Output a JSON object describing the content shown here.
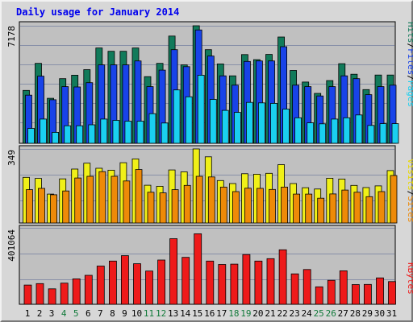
{
  "chart_data": {
    "type": "bar",
    "title": "Daily usage for January 2014",
    "days": [
      "1",
      "2",
      "3",
      "4",
      "5",
      "6",
      "7",
      "8",
      "9",
      "10",
      "11",
      "12",
      "13",
      "14",
      "15",
      "16",
      "17",
      "18",
      "19",
      "20",
      "21",
      "22",
      "23",
      "24",
      "25",
      "26",
      "27",
      "28",
      "29",
      "30",
      "31"
    ],
    "weekend_days": [
      "4",
      "5",
      "11",
      "12",
      "18",
      "19",
      "25",
      "26"
    ],
    "panels": [
      {
        "id": "top",
        "max_label": "7178",
        "ymax": 7178,
        "series": [
          {
            "name": "Hits",
            "color": "#117a5a",
            "values": [
              3230,
              4880,
              2750,
              3950,
              4160,
              4500,
              5820,
              5620,
              5620,
              5820,
              4070,
              4880,
              6550,
              4790,
              7178,
              5720,
              4850,
              4120,
              5420,
              5110,
              5430,
              6490,
              4450,
              3740,
              3050,
              3830,
              4860,
              4220,
              3280,
              4170,
              4170
            ]
          },
          {
            "name": "Files",
            "color": "#1843e8",
            "values": [
              2940,
              4100,
              2660,
              3460,
              3440,
              3700,
              4790,
              4790,
              4790,
              5030,
              3460,
              4470,
              5720,
              4680,
              6920,
              5330,
              4120,
              3550,
              5000,
              5030,
              5030,
              5900,
              3550,
              3460,
              2890,
              3460,
              4120,
              3950,
              2970,
              3460,
              3550
            ]
          },
          {
            "name": "Pages",
            "color": "#1ad0f0",
            "values": [
              910,
              1480,
              670,
              1070,
              1070,
              1130,
              1480,
              1400,
              1350,
              1350,
              1810,
              1240,
              3260,
              2840,
              4160,
              2680,
              2010,
              1890,
              2500,
              2470,
              2440,
              2090,
              1560,
              1250,
              1190,
              1480,
              1560,
              1730,
              1090,
              1200,
              1200
            ]
          }
        ]
      },
      {
        "id": "mid",
        "max_label": "349",
        "ymax": 349,
        "series": [
          {
            "name": "Visits",
            "color": "#f0f018",
            "values": [
              215,
              210,
              136,
              208,
              254,
              282,
              258,
              249,
              284,
              302,
              178,
              173,
              250,
              241,
              349,
              312,
              200,
              186,
              232,
              230,
              234,
              275,
              186,
              166,
              160,
              211,
              207,
              177,
              167,
              175,
              247
            ]
          },
          {
            "name": "Sites",
            "color": "#ee8a08",
            "values": [
              157,
              163,
              133,
              151,
              212,
              220,
              242,
              220,
              198,
              252,
              145,
              142,
              157,
              177,
              220,
              217,
              169,
              148,
              164,
              163,
              158,
              169,
              136,
              136,
              117,
              137,
              155,
              145,
              124,
              148,
              224
            ]
          }
        ]
      },
      {
        "id": "bot",
        "max_label": "401064",
        "ymax": 401064,
        "series": [
          {
            "name": "KBytes",
            "color": "#ee1a1a",
            "values": [
              100900,
              108600,
              81100,
              111100,
              133400,
              151800,
              200700,
              226500,
              255100,
              212600,
              174200,
              232300,
              344100,
              246300,
              369700,
              226500,
              208800,
              210700,
              260900,
              226500,
              239500,
              286000,
              159400,
              182300,
              91600,
              125900,
              175700,
              103500,
              104400,
              138600,
              119000
            ]
          }
        ]
      }
    ],
    "legend_groups": [
      {
        "panel": "top",
        "items": [
          {
            "text": "Pages",
            "color": "#1ad0f0"
          },
          {
            "text": "/",
            "color": "#000000"
          },
          {
            "text": "Files",
            "color": "#1843e8"
          },
          {
            "text": "/",
            "color": "#000000"
          },
          {
            "text": "Hits",
            "color": "#117a5a"
          }
        ]
      },
      {
        "panel": "mid",
        "items": [
          {
            "text": "Sites",
            "color": "#ee8a08"
          },
          {
            "text": "/",
            "color": "#000000"
          },
          {
            "text": "Visits",
            "color": "#e8d800"
          }
        ]
      },
      {
        "panel": "bot",
        "items": [
          {
            "text": "KBytes",
            "color": "#ee1a1a"
          }
        ]
      }
    ],
    "colors": {
      "title": "#0000ee",
      "panel_bg": "#c0c0c0",
      "frame_bg": "#d7d7d7",
      "grid": "#8890a8",
      "day_weekday": "#000000",
      "day_weekend": "#117a3a"
    }
  }
}
